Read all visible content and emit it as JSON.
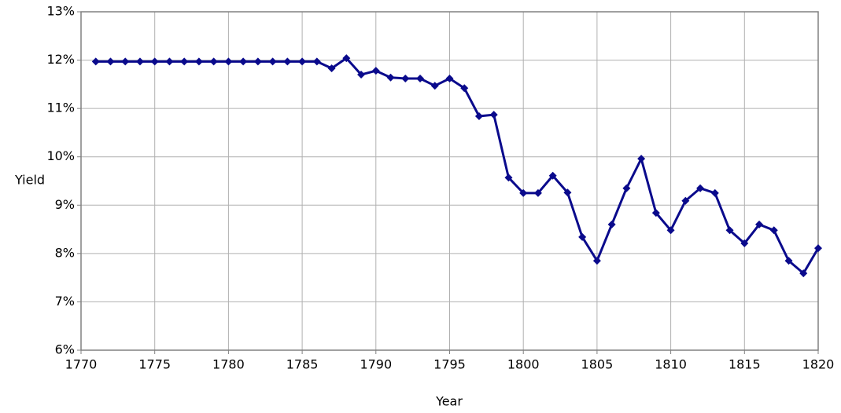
{
  "chart_data": {
    "type": "line",
    "x_label": "Year",
    "y_label": "Yield",
    "x": [
      1771,
      1772,
      1773,
      1774,
      1775,
      1776,
      1777,
      1778,
      1779,
      1780,
      1781,
      1782,
      1783,
      1784,
      1785,
      1786,
      1787,
      1788,
      1789,
      1790,
      1791,
      1792,
      1793,
      1794,
      1795,
      1796,
      1797,
      1798,
      1799,
      1800,
      1801,
      1802,
      1803,
      1804,
      1805,
      1806,
      1807,
      1808,
      1809,
      1810,
      1811,
      1812,
      1813,
      1814,
      1815,
      1816,
      1817,
      1818,
      1819,
      1820
    ],
    "series": [
      {
        "color": "#0a0a8c",
        "values": [
          11.97,
          11.97,
          11.97,
          11.97,
          11.97,
          11.97,
          11.97,
          11.97,
          11.97,
          11.97,
          11.97,
          11.97,
          11.97,
          11.97,
          11.97,
          11.97,
          11.83,
          12.04,
          11.7,
          11.78,
          11.64,
          11.62,
          11.62,
          11.47,
          11.62,
          11.42,
          10.84,
          10.87,
          9.57,
          9.25,
          9.25,
          9.61,
          9.26,
          8.34,
          7.85,
          8.6,
          9.35,
          9.96,
          8.84,
          8.48,
          9.09,
          9.35,
          9.25,
          8.48,
          8.21,
          8.6,
          8.48,
          7.85,
          7.59,
          8.11
        ]
      }
    ],
    "xlim": [
      1770,
      1820
    ],
    "xticks": [
      1770,
      1775,
      1780,
      1785,
      1790,
      1795,
      1800,
      1805,
      1810,
      1815,
      1820
    ],
    "ylim": [
      6,
      13
    ],
    "yticks": [
      {
        "value": 6,
        "label": "6%"
      },
      {
        "value": 7,
        "label": "7%"
      },
      {
        "value": 8,
        "label": "8%"
      },
      {
        "value": 9,
        "label": "9%"
      },
      {
        "value": 10,
        "label": "10%"
      },
      {
        "value": 11,
        "label": "11%"
      },
      {
        "value": 12,
        "label": "12%"
      },
      {
        "value": 13,
        "label": "13%"
      }
    ],
    "grid": true
  }
}
